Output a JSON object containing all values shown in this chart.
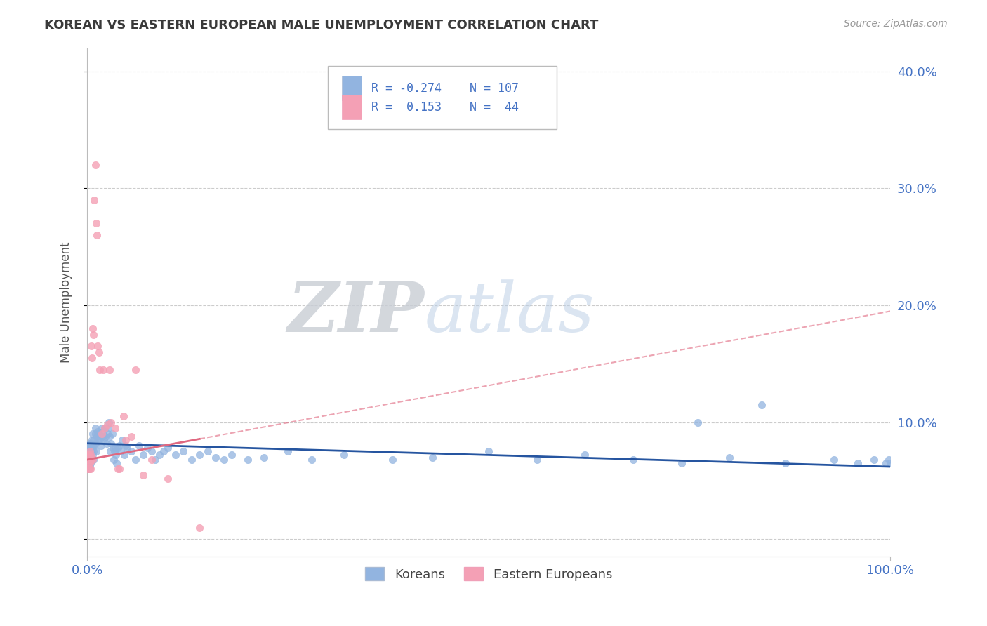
{
  "title": "KOREAN VS EASTERN EUROPEAN MALE UNEMPLOYMENT CORRELATION CHART",
  "source": "Source: ZipAtlas.com",
  "ylabel": "Male Unemployment",
  "watermark_zip": "ZIP",
  "watermark_atlas": "atlas",
  "xlim": [
    0.0,
    1.0
  ],
  "ylim": [
    -0.015,
    0.42
  ],
  "yticks": [
    0.0,
    0.1,
    0.2,
    0.3,
    0.4
  ],
  "korean_color": "#92b4e0",
  "eastern_color": "#f4a0b5",
  "korean_line_color": "#2655a0",
  "eastern_line_color": "#e06880",
  "eastern_line_solid_end": 0.14,
  "korean_R": -0.274,
  "korean_N": 107,
  "eastern_R": 0.153,
  "eastern_N": 44,
  "legend_label_korean": "Koreans",
  "legend_label_eastern": "Eastern Europeans",
  "title_color": "#3a3a3a",
  "axis_color": "#4472c4",
  "background_color": "#ffffff",
  "grid_color": "#cccccc",
  "korean_line_x0": 0.0,
  "korean_line_y0": 0.082,
  "korean_line_x1": 1.0,
  "korean_line_y1": 0.062,
  "eastern_line_x0": 0.0,
  "eastern_line_y0": 0.068,
  "eastern_line_x1": 1.0,
  "eastern_line_y1": 0.195,
  "koreans_x": [
    0.001,
    0.001,
    0.001,
    0.002,
    0.002,
    0.002,
    0.002,
    0.003,
    0.003,
    0.003,
    0.003,
    0.003,
    0.004,
    0.004,
    0.004,
    0.004,
    0.005,
    0.005,
    0.005,
    0.005,
    0.006,
    0.006,
    0.006,
    0.007,
    0.007,
    0.007,
    0.008,
    0.008,
    0.008,
    0.009,
    0.01,
    0.01,
    0.01,
    0.011,
    0.012,
    0.013,
    0.014,
    0.015,
    0.016,
    0.017,
    0.018,
    0.019,
    0.02,
    0.021,
    0.022,
    0.023,
    0.024,
    0.025,
    0.026,
    0.027,
    0.028,
    0.029,
    0.03,
    0.031,
    0.032,
    0.033,
    0.034,
    0.035,
    0.036,
    0.037,
    0.038,
    0.04,
    0.042,
    0.044,
    0.046,
    0.048,
    0.05,
    0.055,
    0.06,
    0.065,
    0.07,
    0.075,
    0.08,
    0.085,
    0.09,
    0.095,
    0.1,
    0.11,
    0.12,
    0.13,
    0.14,
    0.15,
    0.16,
    0.17,
    0.18,
    0.2,
    0.22,
    0.25,
    0.28,
    0.32,
    0.38,
    0.43,
    0.5,
    0.56,
    0.62,
    0.68,
    0.74,
    0.8,
    0.87,
    0.93,
    0.96,
    0.98,
    0.995,
    0.998,
    1.0,
    0.76,
    0.84
  ],
  "koreans_y": [
    0.075,
    0.065,
    0.08,
    0.07,
    0.065,
    0.078,
    0.06,
    0.075,
    0.068,
    0.082,
    0.072,
    0.062,
    0.078,
    0.07,
    0.082,
    0.065,
    0.08,
    0.075,
    0.068,
    0.072,
    0.085,
    0.075,
    0.068,
    0.08,
    0.09,
    0.072,
    0.085,
    0.075,
    0.068,
    0.08,
    0.09,
    0.082,
    0.095,
    0.075,
    0.088,
    0.092,
    0.085,
    0.09,
    0.085,
    0.08,
    0.095,
    0.088,
    0.092,
    0.085,
    0.095,
    0.088,
    0.082,
    0.09,
    0.095,
    0.1,
    0.088,
    0.075,
    0.082,
    0.09,
    0.078,
    0.068,
    0.075,
    0.078,
    0.072,
    0.065,
    0.078,
    0.08,
    0.075,
    0.085,
    0.072,
    0.08,
    0.078,
    0.075,
    0.068,
    0.08,
    0.072,
    0.078,
    0.075,
    0.068,
    0.072,
    0.075,
    0.078,
    0.072,
    0.075,
    0.068,
    0.072,
    0.075,
    0.07,
    0.068,
    0.072,
    0.068,
    0.07,
    0.075,
    0.068,
    0.072,
    0.068,
    0.07,
    0.075,
    0.068,
    0.072,
    0.068,
    0.065,
    0.07,
    0.065,
    0.068,
    0.065,
    0.068,
    0.065,
    0.068,
    0.065,
    0.1,
    0.115
  ],
  "eastern_x": [
    0.001,
    0.001,
    0.001,
    0.002,
    0.002,
    0.002,
    0.002,
    0.003,
    0.003,
    0.003,
    0.004,
    0.004,
    0.004,
    0.005,
    0.005,
    0.006,
    0.006,
    0.007,
    0.007,
    0.008,
    0.009,
    0.01,
    0.011,
    0.012,
    0.013,
    0.015,
    0.016,
    0.018,
    0.02,
    0.022,
    0.025,
    0.028,
    0.03,
    0.035,
    0.038,
    0.04,
    0.045,
    0.048,
    0.055,
    0.06,
    0.07,
    0.08,
    0.1,
    0.14
  ],
  "eastern_y": [
    0.068,
    0.072,
    0.06,
    0.065,
    0.072,
    0.06,
    0.068,
    0.065,
    0.06,
    0.075,
    0.068,
    0.06,
    0.072,
    0.068,
    0.165,
    0.155,
    0.07,
    0.18,
    0.068,
    0.175,
    0.29,
    0.32,
    0.27,
    0.26,
    0.165,
    0.16,
    0.145,
    0.09,
    0.145,
    0.095,
    0.098,
    0.145,
    0.1,
    0.095,
    0.06,
    0.06,
    0.105,
    0.085,
    0.088,
    0.145,
    0.055,
    0.068,
    0.052,
    0.01
  ]
}
